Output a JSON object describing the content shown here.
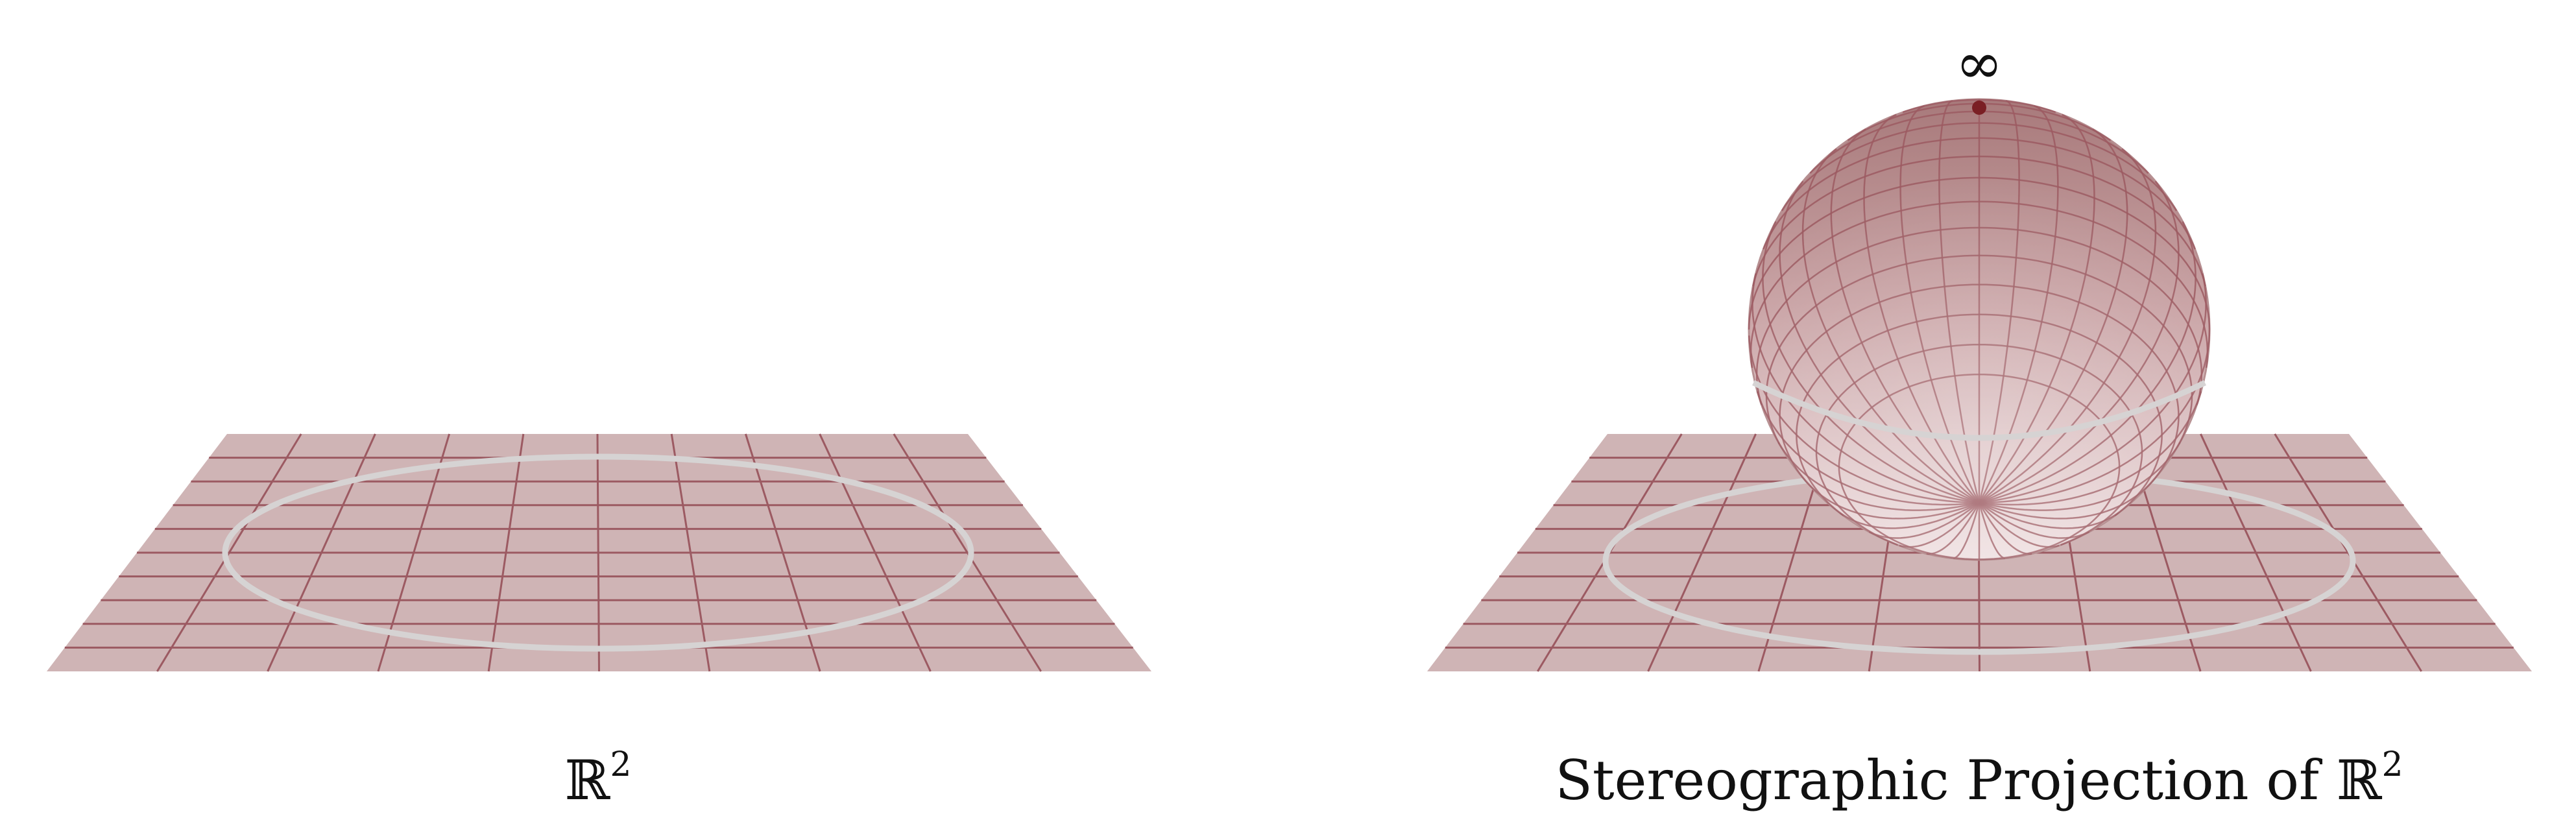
{
  "left_panel": {
    "caption_base": "ℝ",
    "caption_sup": "2"
  },
  "right_panel": {
    "caption_prefix": "Stereographic Projection of ℝ",
    "caption_sup": "2",
    "infinity_label": "∞"
  },
  "colors": {
    "plane_fill": "#cfb4b5",
    "grid_line": "#9c5a62",
    "circle_stroke": "#d6d3d3",
    "sphere_top": "#a87a7b",
    "sphere_bottom": "#efe0e1",
    "north_pole_point": "#7a1f24"
  }
}
